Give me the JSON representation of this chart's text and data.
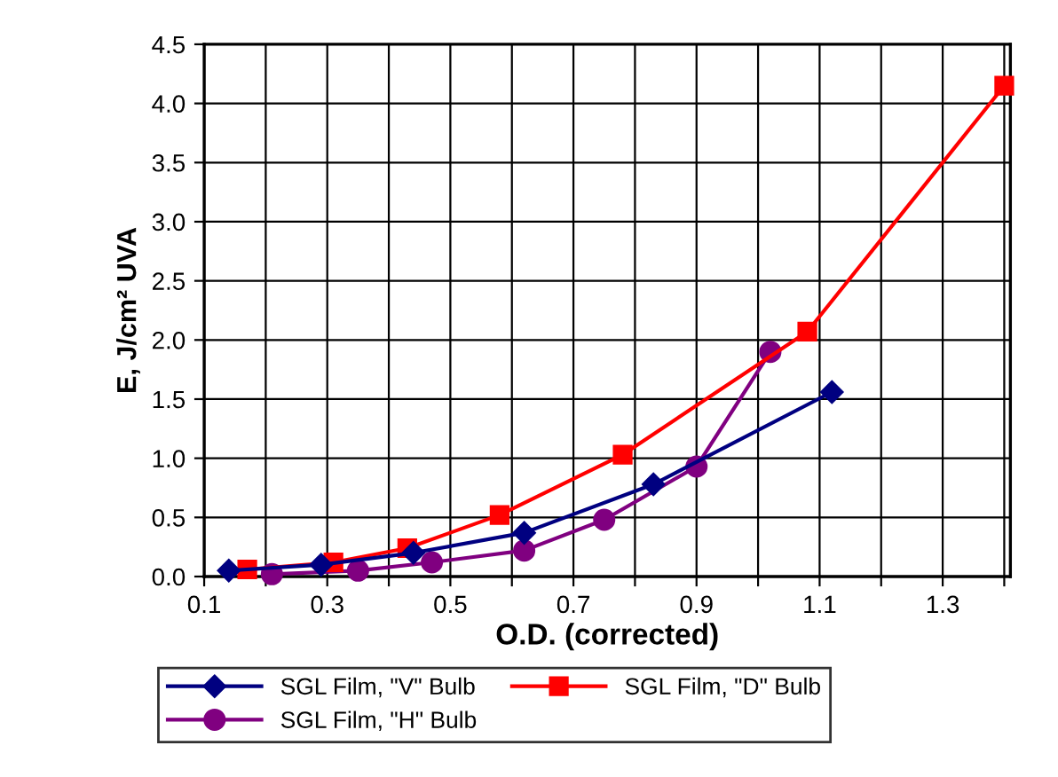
{
  "chart_data": {
    "type": "line",
    "xlabel": "O.D. (corrected)",
    "ylabel": "E, J/cm² UVA",
    "series": [
      {
        "name": "SGL Film, \"V\" Bulb",
        "color": "#000080",
        "marker": "diamond",
        "x": [
          0.14,
          0.29,
          0.44,
          0.62,
          0.83,
          1.12
        ],
        "values": [
          0.05,
          0.1,
          0.2,
          0.37,
          0.78,
          1.56
        ]
      },
      {
        "name": "SGL Film, \"D\" Bulb",
        "color": "#ff0000",
        "marker": "square",
        "x": [
          0.17,
          0.31,
          0.43,
          0.58,
          0.78,
          1.08,
          1.4
        ],
        "values": [
          0.06,
          0.12,
          0.24,
          0.52,
          1.03,
          2.07,
          4.15
        ]
      },
      {
        "name": "SGL Film, \"H\" Bulb",
        "color": "#800080",
        "marker": "circle",
        "x": [
          0.21,
          0.35,
          0.47,
          0.62,
          0.75,
          0.9,
          1.02
        ],
        "values": [
          0.02,
          0.05,
          0.12,
          0.22,
          0.48,
          0.93,
          1.9
        ]
      }
    ],
    "xlim": [
      0.1,
      1.41
    ],
    "xticks": [
      0.1,
      {
        "value": 0.2,
        "label": null
      },
      0.3,
      {
        "value": 0.4,
        "label": null
      },
      0.5,
      {
        "value": 0.6,
        "label": null
      },
      0.7,
      {
        "value": 0.8,
        "label": null
      },
      0.9,
      {
        "value": 1.0,
        "label": null
      },
      1.1,
      {
        "value": 1.2,
        "label": null
      },
      1.3,
      {
        "value": 1.4,
        "label": null
      }
    ],
    "ylim": [
      0,
      4.5
    ],
    "yticks": [
      {
        "value": 0,
        "label": "0.0"
      },
      0.5,
      {
        "value": 1,
        "label": "1.0"
      },
      1.5,
      {
        "value": 2,
        "label": "2.0"
      },
      2.5,
      {
        "value": 3,
        "label": "3.0"
      },
      3.5,
      {
        "value": 4,
        "label": "4.0"
      },
      4.5
    ],
    "grid": true,
    "legend": "bottom",
    "line_style": "solid"
  }
}
